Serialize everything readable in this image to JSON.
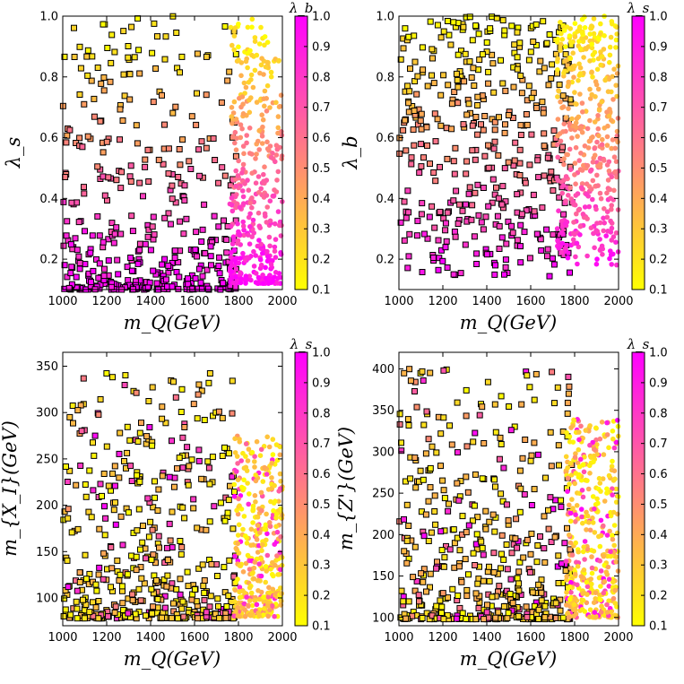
{
  "colors": {
    "low": "#ffff00",
    "high": "#ff00ff",
    "square_edge": "#000000",
    "axes": "#000000"
  },
  "chart_data": [
    {
      "id": "panel-1",
      "type": "scatter",
      "xlabel": "m_Q(GeV)",
      "ylabel": "λ_s",
      "colorbar_label": "λ_b",
      "xlim": [
        1000,
        2000
      ],
      "ylim": [
        0.1,
        1.0
      ],
      "xticks": [
        1000,
        1200,
        1400,
        1600,
        1800,
        2000
      ],
      "yticks": [
        0.2,
        0.4,
        0.6,
        0.8,
        1.0
      ],
      "ytick_labels": [
        "0.2",
        "0.4",
        "0.6",
        "0.8",
        "1.0"
      ],
      "colorbar_ticks": [
        "0.1",
        "0.2",
        "0.3",
        "0.4",
        "0.5",
        "0.6",
        "0.7",
        "0.8",
        "0.9",
        "1.0"
      ],
      "series": [
        {
          "name": "squares",
          "marker": "square",
          "x_range": [
            1000,
            1790
          ],
          "y_range": [
            0.1,
            1.0
          ],
          "y_bias": 2.2,
          "color_rule": "inverse-y",
          "count": 420,
          "approximate": true
        },
        {
          "name": "circles",
          "marker": "circle",
          "x_range": [
            1760,
            2000
          ],
          "y_range": [
            0.12,
            1.0
          ],
          "y_bias": 1.7,
          "color_rule": "inverse-y",
          "count": 380,
          "approximate": true
        }
      ]
    },
    {
      "id": "panel-2",
      "type": "scatter",
      "xlabel": "m_Q(GeV)",
      "ylabel": "λ_b",
      "colorbar_label": "λ_s",
      "xlim": [
        1000,
        2000
      ],
      "ylim": [
        0.1,
        1.0
      ],
      "xticks": [
        1000,
        1200,
        1400,
        1600,
        1800,
        2000
      ],
      "yticks": [
        0.2,
        0.4,
        0.6,
        0.8,
        1.0
      ],
      "ytick_labels": [
        "0.2",
        "0.4",
        "0.6",
        "0.8",
        "1.0"
      ],
      "colorbar_ticks": [
        "0.1",
        "0.2",
        "0.3",
        "0.4",
        "0.5",
        "0.6",
        "0.7",
        "0.8",
        "0.9",
        "1.0"
      ],
      "series": [
        {
          "name": "squares",
          "marker": "square",
          "x_range": [
            1000,
            1790
          ],
          "y_range": [
            0.14,
            1.0
          ],
          "y_bias": 1.0,
          "color_rule": "inverse-y",
          "count": 430,
          "approximate": true
        },
        {
          "name": "circles",
          "marker": "circle",
          "x_range": [
            1720,
            2000
          ],
          "y_range": [
            0.18,
            1.0
          ],
          "y_bias": 1.0,
          "color_rule": "inverse-y",
          "count": 420,
          "approximate": true
        }
      ]
    },
    {
      "id": "panel-3",
      "type": "scatter",
      "xlabel": "m_Q(GeV)",
      "ylabel": "m_{X_I}(GeV)",
      "colorbar_label": "λ_s",
      "xlim": [
        1000,
        2000
      ],
      "ylim": [
        70,
        365
      ],
      "xticks": [
        1000,
        1200,
        1400,
        1600,
        1800,
        2000
      ],
      "yticks": [
        100,
        150,
        200,
        250,
        300,
        350
      ],
      "ytick_labels": [
        "100",
        "150",
        "200",
        "250",
        "300",
        "350"
      ],
      "colorbar_ticks": [
        "0.1",
        "0.2",
        "0.3",
        "0.4",
        "0.5",
        "0.6",
        "0.7",
        "0.8",
        "0.9",
        "1.0"
      ],
      "series": [
        {
          "name": "squares",
          "marker": "square",
          "x_range": [
            1000,
            1790
          ],
          "y_range": [
            78,
            345
          ],
          "y_bias": 2.4,
          "color_rule": "random-mostly-low",
          "count": 470,
          "approximate": true
        },
        {
          "name": "circles",
          "marker": "circle",
          "x_range": [
            1780,
            2000
          ],
          "y_range": [
            80,
            275
          ],
          "y_bias": 1.6,
          "color_rule": "random-mostly-low",
          "count": 380,
          "approximate": true
        }
      ]
    },
    {
      "id": "panel-4",
      "type": "scatter",
      "xlabel": "m_Q(GeV)",
      "ylabel": "m_{Z'}(GeV)",
      "colorbar_label": "λ_s",
      "xlim": [
        1000,
        2000
      ],
      "ylim": [
        90,
        420
      ],
      "xticks": [
        1000,
        1200,
        1400,
        1600,
        1800,
        2000
      ],
      "yticks": [
        100,
        150,
        200,
        250,
        300,
        350,
        400
      ],
      "ytick_labels": [
        "100",
        "150",
        "200",
        "250",
        "300",
        "350",
        "400"
      ],
      "colorbar_ticks": [
        "0.1",
        "0.2",
        "0.3",
        "0.4",
        "0.5",
        "0.6",
        "0.7",
        "0.8",
        "0.9",
        "1.0"
      ],
      "series": [
        {
          "name": "squares",
          "marker": "square",
          "x_range": [
            1000,
            1790
          ],
          "y_range": [
            98,
            400
          ],
          "y_bias": 2.3,
          "color_rule": "random-mostly-low",
          "count": 480,
          "approximate": true
        },
        {
          "name": "circles",
          "marker": "circle",
          "x_range": [
            1760,
            2000
          ],
          "y_range": [
            100,
            340
          ],
          "y_bias": 1.6,
          "color_rule": "random-mostly-low",
          "count": 400,
          "approximate": true
        }
      ]
    }
  ]
}
